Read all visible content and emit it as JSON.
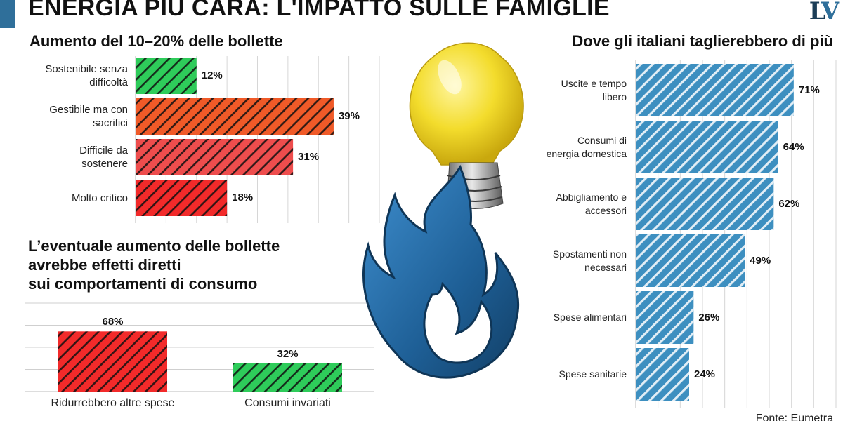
{
  "header": {
    "title": "ENERGIA PIÙ CARA: L'IMPATTO SULLE FAMIGLIE",
    "logo_l": "L",
    "logo_v": "V"
  },
  "source": "Fonte: Eumetra",
  "colors": {
    "accent": "#2f6f9a",
    "green": "#2ecc5a",
    "orange": "#f05a28",
    "salmon": "#ee4d4d",
    "red": "#f22a2a",
    "blue": "#3d8fc0"
  },
  "chart_data": [
    {
      "type": "bar",
      "orientation": "horizontal",
      "title": "Aumento del 10–20% delle bollette",
      "categories": [
        [
          "Sostenibile senza",
          "difficoltà"
        ],
        [
          "Gestibile ma con",
          "sacrifici"
        ],
        [
          "Difficile da",
          "sostenere"
        ],
        [
          "Molto critico"
        ]
      ],
      "values": [
        12,
        39,
        31,
        18
      ],
      "value_labels": [
        "12%",
        "39%",
        "31%",
        "18%"
      ],
      "colors": [
        "#2ecc5a",
        "#f05a28",
        "#ee4d4d",
        "#f22a2a"
      ],
      "xlim": [
        0,
        48
      ],
      "grid": true
    },
    {
      "type": "bar",
      "orientation": "vertical",
      "title": [
        "L’eventuale aumento delle bollette",
        "avrebbe effetti diretti",
        "sui comportamenti di consumo"
      ],
      "categories": [
        "Ridurrebbero altre spese",
        "Consumi invariati"
      ],
      "values": [
        68,
        32
      ],
      "value_labels": [
        "68%",
        "32%"
      ],
      "colors": [
        "#f22a2a",
        "#2ecc5a"
      ],
      "ylim": [
        0,
        100
      ],
      "grid": true
    },
    {
      "type": "bar",
      "orientation": "horizontal",
      "title": "Dove gli italiani taglierebbero di più",
      "categories": [
        [
          "Uscite e tempo",
          "libero"
        ],
        [
          "Consumi di",
          "energia domestica"
        ],
        [
          "Abbigliamento e",
          "accessori"
        ],
        [
          "Spostamenti non",
          "necessari"
        ],
        [
          "Spese alimentari"
        ],
        [
          "Spese sanitarie"
        ]
      ],
      "values": [
        71,
        64,
        62,
        49,
        26,
        24
      ],
      "value_labels": [
        "71%",
        "64%",
        "62%",
        "49%",
        "26%",
        "24%"
      ],
      "colors": [
        "#3d8fc0",
        "#3d8fc0",
        "#3d8fc0",
        "#3d8fc0",
        "#3d8fc0",
        "#3d8fc0"
      ],
      "xlim": [
        0,
        90
      ],
      "grid": true
    }
  ]
}
